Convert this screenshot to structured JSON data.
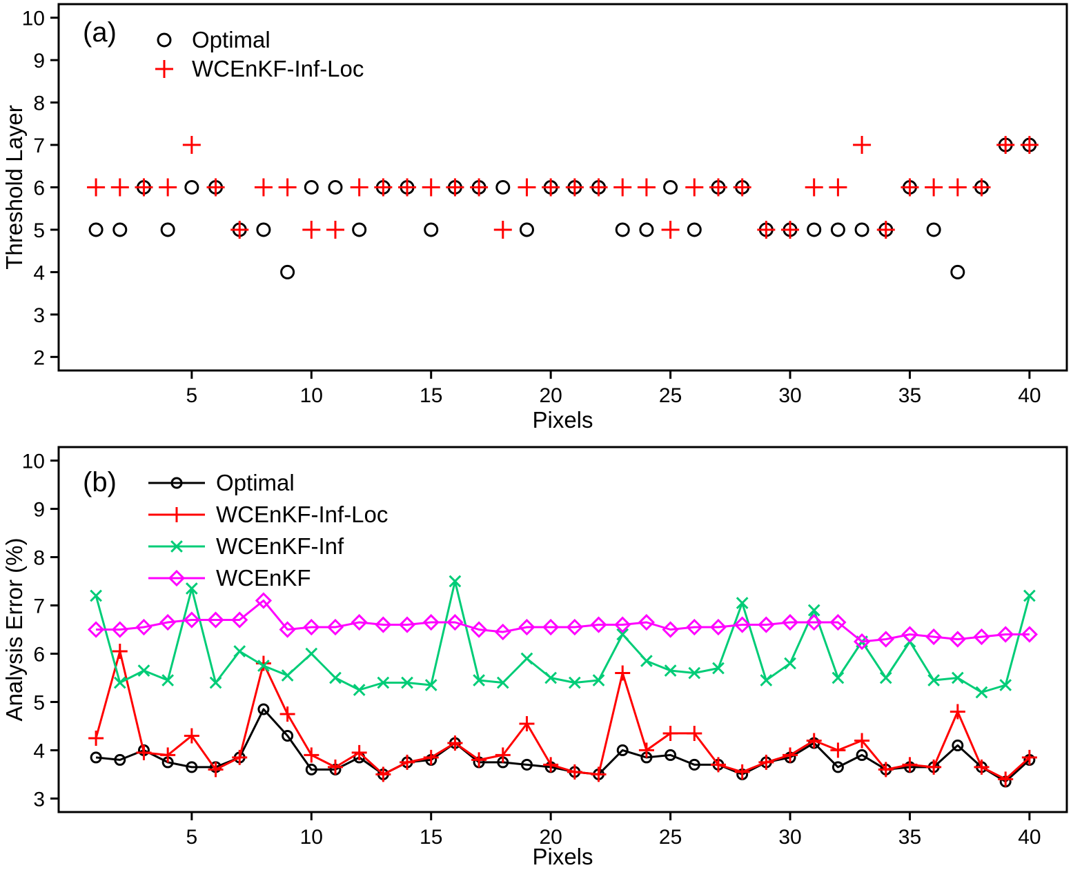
{
  "figure": {
    "background": "#ffffff",
    "text_color": "#000000"
  },
  "chart_data": [
    {
      "type": "scatter",
      "panel_label": "(a)",
      "xlabel": "Pixels",
      "ylabel": "Threshold Layer",
      "xlim": [
        -0.56,
        41.56
      ],
      "ylim": [
        1.68,
        10.32
      ],
      "xticks": [
        5,
        10,
        15,
        20,
        25,
        30,
        35,
        40
      ],
      "yticks": [
        2,
        3,
        4,
        5,
        6,
        7,
        8,
        9,
        10
      ],
      "grid": false,
      "legend_position": "top-left",
      "x": [
        1,
        2,
        3,
        4,
        5,
        6,
        7,
        8,
        9,
        10,
        11,
        12,
        13,
        14,
        15,
        16,
        17,
        18,
        19,
        20,
        21,
        22,
        23,
        24,
        25,
        26,
        27,
        28,
        29,
        30,
        31,
        32,
        33,
        34,
        35,
        36,
        37,
        38,
        39,
        40
      ],
      "series": [
        {
          "name": "Optimal",
          "color": "#000000",
          "marker": "circle",
          "values": [
            5,
            5,
            6,
            5,
            6,
            6,
            5,
            5,
            4,
            6,
            6,
            5,
            6,
            6,
            5,
            6,
            6,
            6,
            5,
            6,
            6,
            6,
            5,
            5,
            6,
            5,
            6,
            6,
            5,
            5,
            5,
            5,
            5,
            5,
            6,
            5,
            4,
            6,
            7,
            7
          ]
        },
        {
          "name": "WCEnKF-Inf-Loc",
          "color": "#ff0000",
          "marker": "plus",
          "values": [
            6,
            6,
            6,
            6,
            7,
            6,
            5,
            6,
            6,
            5,
            5,
            6,
            6,
            6,
            6,
            6,
            6,
            5,
            6,
            6,
            6,
            6,
            6,
            6,
            5,
            6,
            6,
            6,
            5,
            5,
            6,
            6,
            7,
            5,
            6,
            6,
            6,
            6,
            7,
            7
          ]
        }
      ]
    },
    {
      "type": "line",
      "panel_label": "(b)",
      "xlabel": "Pixels",
      "ylabel": "Analysis Error (%)",
      "xlim": [
        -0.56,
        41.56
      ],
      "ylim": [
        2.72,
        10.28
      ],
      "xticks": [
        5,
        10,
        15,
        20,
        25,
        30,
        35,
        40
      ],
      "yticks": [
        3,
        4,
        5,
        6,
        7,
        8,
        9,
        10
      ],
      "grid": false,
      "legend_position": "top-left",
      "x": [
        1,
        2,
        3,
        4,
        5,
        6,
        7,
        8,
        9,
        10,
        11,
        12,
        13,
        14,
        15,
        16,
        17,
        18,
        19,
        20,
        21,
        22,
        23,
        24,
        25,
        26,
        27,
        28,
        29,
        30,
        31,
        32,
        33,
        34,
        35,
        36,
        37,
        38,
        39,
        40
      ],
      "series": [
        {
          "name": "Optimal",
          "color": "#000000",
          "marker": "circle",
          "values": [
            3.85,
            3.8,
            4.0,
            3.75,
            3.65,
            3.65,
            3.85,
            4.85,
            4.3,
            3.6,
            3.6,
            3.85,
            3.5,
            3.75,
            3.8,
            4.15,
            3.75,
            3.75,
            3.7,
            3.65,
            3.55,
            3.5,
            4.0,
            3.85,
            3.9,
            3.7,
            3.7,
            3.5,
            3.75,
            3.85,
            4.15,
            3.65,
            3.9,
            3.6,
            3.65,
            3.65,
            4.1,
            3.65,
            3.35,
            3.8
          ]
        },
        {
          "name": "WCEnKF-Inf-Loc",
          "color": "#ff0000",
          "marker": "plus",
          "values": [
            4.25,
            6.05,
            3.95,
            3.9,
            4.3,
            3.6,
            3.85,
            5.8,
            4.75,
            3.9,
            3.65,
            3.95,
            3.5,
            3.75,
            3.85,
            4.15,
            3.8,
            3.9,
            4.55,
            3.7,
            3.55,
            3.5,
            5.6,
            4.0,
            4.35,
            4.35,
            3.7,
            3.55,
            3.75,
            3.9,
            4.2,
            4.0,
            4.2,
            3.6,
            3.7,
            3.65,
            4.8,
            3.65,
            3.4,
            3.85
          ]
        },
        {
          "name": "WCEnKF-Inf",
          "color": "#00cc77",
          "marker": "x",
          "values": [
            7.2,
            5.4,
            5.65,
            5.45,
            7.35,
            5.4,
            6.05,
            5.75,
            5.55,
            6.0,
            5.5,
            5.25,
            5.4,
            5.4,
            5.35,
            7.5,
            5.45,
            5.4,
            5.9,
            5.5,
            5.4,
            5.45,
            6.4,
            5.85,
            5.65,
            5.6,
            5.7,
            7.05,
            5.45,
            5.8,
            6.9,
            5.5,
            6.25,
            5.5,
            6.25,
            5.45,
            5.5,
            5.2,
            5.35,
            7.2
          ]
        },
        {
          "name": "WCEnKF",
          "color": "#ff00ff",
          "marker": "diamond",
          "values": [
            6.5,
            6.5,
            6.55,
            6.65,
            6.7,
            6.7,
            6.7,
            7.1,
            6.5,
            6.55,
            6.55,
            6.65,
            6.6,
            6.6,
            6.65,
            6.65,
            6.5,
            6.45,
            6.55,
            6.55,
            6.55,
            6.6,
            6.6,
            6.65,
            6.5,
            6.55,
            6.55,
            6.6,
            6.6,
            6.65,
            6.65,
            6.65,
            6.25,
            6.3,
            6.4,
            6.35,
            6.3,
            6.35,
            6.4,
            6.4
          ]
        }
      ]
    }
  ]
}
